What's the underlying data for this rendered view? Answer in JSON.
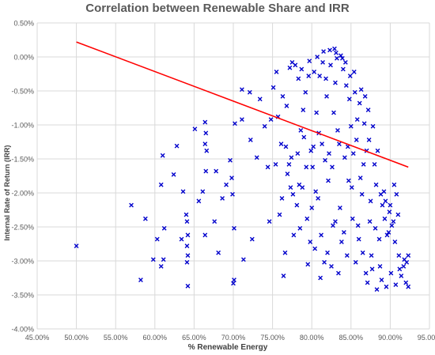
{
  "chart_data": {
    "type": "scatter",
    "title": "Correlation between Renewable Share and IRR",
    "xlabel": "% Renewable Energy",
    "ylabel": "Internal Rate of Return (IRR)",
    "xlim": [
      45,
      95
    ],
    "ylim": [
      -4.0,
      0.5
    ],
    "x_ticks": [
      "45.00%",
      "50.00%",
      "55.00%",
      "60.00%",
      "65.00%",
      "70.00%",
      "75.00%",
      "80.00%",
      "85.00%",
      "90.00%",
      "95.00%"
    ],
    "y_ticks": [
      "0.50%",
      "0.00%",
      "-0.50%",
      "-1.00%",
      "-1.50%",
      "-2.00%",
      "-2.50%",
      "-3.00%",
      "-3.50%",
      "-4.00%"
    ],
    "grid": true,
    "marker": "x",
    "marker_color": "#0000CC",
    "trendline": {
      "color": "#FF0000",
      "x": [
        50.0,
        92.3
      ],
      "y": [
        0.22,
        -1.62
      ]
    },
    "series": [
      {
        "points": [
          [
            50.0,
            -2.78
          ],
          [
            57.0,
            -2.18
          ],
          [
            58.2,
            -3.28
          ],
          [
            58.8,
            -2.38
          ],
          [
            59.8,
            -2.98
          ],
          [
            60.3,
            -2.68
          ],
          [
            60.8,
            -3.08
          ],
          [
            61.1,
            -2.98
          ],
          [
            61.0,
            -1.45
          ],
          [
            60.8,
            -1.88
          ],
          [
            61.2,
            -2.52
          ],
          [
            62.4,
            -1.73
          ],
          [
            62.8,
            -1.31
          ],
          [
            63.4,
            -2.68
          ],
          [
            63.6,
            -1.98
          ],
          [
            64.0,
            -2.32
          ],
          [
            64.1,
            -2.42
          ],
          [
            64.2,
            -2.62
          ],
          [
            64.1,
            -2.78
          ],
          [
            64.2,
            -2.92
          ],
          [
            64.1,
            -3.02
          ],
          [
            64.2,
            -3.37
          ],
          [
            65.1,
            -1.06
          ],
          [
            65.6,
            -2.12
          ],
          [
            66.1,
            -1.98
          ],
          [
            66.4,
            -0.96
          ],
          [
            66.5,
            -1.12
          ],
          [
            66.4,
            -1.28
          ],
          [
            66.6,
            -1.38
          ],
          [
            66.5,
            -1.68
          ],
          [
            66.4,
            -2.62
          ],
          [
            67.8,
            -1.68
          ],
          [
            67.6,
            -2.42
          ],
          [
            68.1,
            -2.88
          ],
          [
            69.1,
            -1.88
          ],
          [
            68.6,
            -2.08
          ],
          [
            69.6,
            -1.52
          ],
          [
            69.8,
            -1.78
          ],
          [
            69.9,
            -2.02
          ],
          [
            70.1,
            -2.52
          ],
          [
            70.1,
            -3.28
          ],
          [
            70.0,
            -3.33
          ],
          [
            70.2,
            -0.98
          ],
          [
            71.1,
            -0.92
          ],
          [
            71.1,
            -0.48
          ],
          [
            71.3,
            -2.98
          ],
          [
            72.1,
            -0.52
          ],
          [
            72.2,
            -1.22
          ],
          [
            72.4,
            -2.68
          ],
          [
            73.0,
            -1.48
          ],
          [
            73.4,
            -0.62
          ],
          [
            74.0,
            -1.02
          ],
          [
            74.4,
            -1.62
          ],
          [
            74.6,
            -2.42
          ],
          [
            75.1,
            -0.45
          ],
          [
            75.5,
            -0.22
          ],
          [
            75.7,
            -0.88
          ],
          [
            76.1,
            -1.28
          ],
          [
            76.2,
            -2.08
          ],
          [
            76.6,
            -2.88
          ],
          [
            76.8,
            -0.72
          ],
          [
            77.2,
            -0.16
          ],
          [
            77.4,
            -1.48
          ],
          [
            77.7,
            -2.62
          ],
          [
            78.3,
            -0.32
          ],
          [
            78.6,
            -1.08
          ],
          [
            78.8,
            -1.92
          ],
          [
            79.2,
            -0.52
          ],
          [
            79.4,
            -2.38
          ],
          [
            79.7,
            -0.06
          ],
          [
            80.1,
            -1.62
          ],
          [
            80.4,
            -2.82
          ],
          [
            80.6,
            -0.82
          ],
          [
            80.8,
            -2.08
          ],
          [
            81.0,
            -0.28
          ],
          [
            81.3,
            -1.28
          ],
          [
            81.6,
            -3.02
          ],
          [
            81.9,
            -0.58
          ],
          [
            82.1,
            -1.82
          ],
          [
            82.4,
            -0.12
          ],
          [
            82.7,
            -2.48
          ],
          [
            83.0,
            -0.38
          ],
          [
            83.3,
            -1.08
          ],
          [
            83.6,
            -2.22
          ],
          [
            83.9,
            -0.02
          ],
          [
            84.2,
            -1.48
          ],
          [
            84.5,
            -2.92
          ],
          [
            84.8,
            -0.62
          ],
          [
            85.1,
            -1.92
          ],
          [
            85.4,
            -0.22
          ],
          [
            85.7,
            -1.22
          ],
          [
            86.0,
            -2.68
          ],
          [
            86.3,
            -0.48
          ],
          [
            86.6,
            -1.58
          ],
          [
            86.9,
            -3.18
          ],
          [
            87.2,
            -0.78
          ],
          [
            87.5,
            -2.12
          ],
          [
            87.8,
            -1.02
          ],
          [
            88.1,
            -2.52
          ],
          [
            88.4,
            -1.38
          ],
          [
            88.7,
            -3.08
          ],
          [
            89.0,
            -2.18
          ],
          [
            89.3,
            -2.38
          ],
          [
            89.6,
            -2.62
          ],
          [
            89.9,
            -2.28
          ],
          [
            90.2,
            -2.48
          ],
          [
            90.5,
            -1.88
          ],
          [
            90.8,
            -2.02
          ],
          [
            91.1,
            -2.92
          ],
          [
            91.4,
            -3.22
          ],
          [
            91.7,
            -3.08
          ],
          [
            92.0,
            -3.32
          ],
          [
            92.3,
            -3.38
          ],
          [
            92.3,
            -2.92
          ],
          [
            92.1,
            -3.02
          ],
          [
            76.4,
            -3.22
          ],
          [
            77.1,
            -1.58
          ],
          [
            77.9,
            -0.12
          ],
          [
            78.1,
            -2.18
          ],
          [
            78.9,
            -0.78
          ],
          [
            79.5,
            -3.05
          ],
          [
            79.9,
            -1.38
          ],
          [
            80.3,
            -0.22
          ],
          [
            80.9,
            -1.12
          ],
          [
            81.2,
            -2.62
          ],
          [
            81.8,
            -0.32
          ],
          [
            82.2,
            -1.42
          ],
          [
            82.8,
            -0.82
          ],
          [
            83.4,
            -3.18
          ],
          [
            84.0,
            -0.18
          ],
          [
            84.6,
            -1.32
          ],
          [
            85.2,
            -2.38
          ],
          [
            85.8,
            -0.92
          ],
          [
            86.4,
            -2.02
          ],
          [
            87.0,
            -1.38
          ],
          [
            87.6,
            -2.92
          ],
          [
            88.2,
            -1.88
          ],
          [
            88.8,
            -2.02
          ],
          [
            89.4,
            -2.12
          ],
          [
            90.0,
            -2.18
          ],
          [
            90.6,
            -2.72
          ],
          [
            91.2,
            -3.12
          ],
          [
            91.8,
            -2.98
          ],
          [
            74.8,
            -0.92
          ],
          [
            75.9,
            -2.32
          ],
          [
            76.9,
            -1.72
          ],
          [
            77.6,
            -2.02
          ],
          [
            78.4,
            -1.88
          ],
          [
            79.0,
            -1.18
          ],
          [
            79.8,
            -2.72
          ],
          [
            80.5,
            -1.98
          ],
          [
            81.4,
            -0.08
          ],
          [
            82.0,
            -2.88
          ],
          [
            82.6,
            -1.62
          ],
          [
            83.2,
            -0.02
          ],
          [
            83.8,
            -2.72
          ],
          [
            84.4,
            -0.42
          ],
          [
            85.0,
            -1.02
          ],
          [
            85.6,
            -3.02
          ],
          [
            86.2,
            -1.78
          ],
          [
            86.8,
            -0.58
          ],
          [
            87.4,
            -2.42
          ],
          [
            88.0,
            -1.58
          ],
          [
            88.6,
            -2.68
          ],
          [
            89.2,
            -1.98
          ],
          [
            89.8,
            -2.58
          ],
          [
            90.4,
            -2.42
          ],
          [
            91.0,
            -2.32
          ],
          [
            81.5,
            0.08
          ],
          [
            82.3,
            0.1
          ],
          [
            83.1,
            0.06
          ],
          [
            83.7,
            0.02
          ],
          [
            84.3,
            -0.08
          ],
          [
            84.9,
            -0.28
          ],
          [
            85.5,
            -0.52
          ],
          [
            86.1,
            -0.68
          ],
          [
            86.7,
            -0.98
          ],
          [
            87.3,
            -1.22
          ],
          [
            82.9,
            0.12
          ],
          [
            80.7,
            0.0
          ],
          [
            79.6,
            -0.28
          ],
          [
            78.7,
            -0.18
          ],
          [
            77.5,
            -0.08
          ],
          [
            76.3,
            -0.58
          ],
          [
            84.7,
            -1.82
          ],
          [
            85.3,
            -1.42
          ],
          [
            83.5,
            -1.28
          ],
          [
            81.7,
            -1.52
          ],
          [
            80.2,
            -1.32
          ],
          [
            79.3,
            -1.62
          ],
          [
            78.2,
            -1.42
          ],
          [
            76.7,
            -1.32
          ],
          [
            75.4,
            -1.58
          ],
          [
            83.0,
            -2.42
          ],
          [
            84.1,
            -2.58
          ],
          [
            85.9,
            -2.48
          ],
          [
            86.5,
            -2.88
          ],
          [
            87.1,
            -3.32
          ],
          [
            87.7,
            -3.12
          ],
          [
            88.3,
            -3.42
          ],
          [
            88.9,
            -3.28
          ],
          [
            89.5,
            -3.38
          ],
          [
            90.1,
            -3.18
          ],
          [
            90.7,
            -3.35
          ],
          [
            81.1,
            -3.25
          ],
          [
            82.5,
            -3.08
          ],
          [
            80.0,
            -2.22
          ],
          [
            78.5,
            -2.52
          ],
          [
            77.3,
            -1.92
          ]
        ]
      }
    ]
  }
}
